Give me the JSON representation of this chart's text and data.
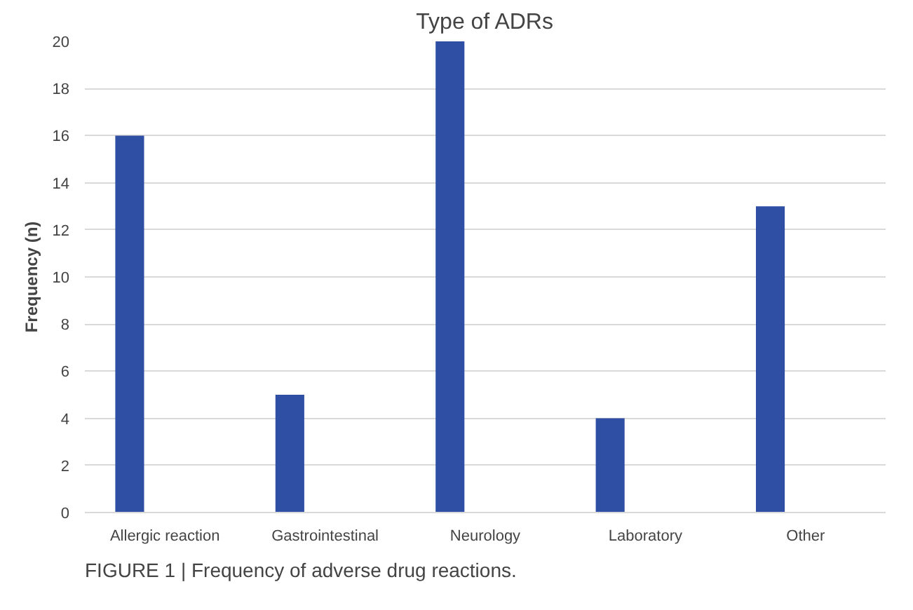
{
  "chart_data": {
    "type": "bar",
    "title": "Type of ADRs",
    "ylabel": "Frequency (n)",
    "categories": [
      "Allergic reaction",
      "Gastrointestinal",
      "Neurology",
      "Laboratory",
      "Other"
    ],
    "values": [
      16,
      5,
      20,
      4,
      13
    ],
    "color": "#2e4fa3",
    "ylim": [
      0,
      20
    ],
    "yticks": [
      0,
      2,
      4,
      6,
      8,
      10,
      12,
      14,
      16,
      18,
      20
    ],
    "grid": "y",
    "annotations": [
      "FIGURE 1 | Frequency of adverse drug reactions."
    ]
  }
}
